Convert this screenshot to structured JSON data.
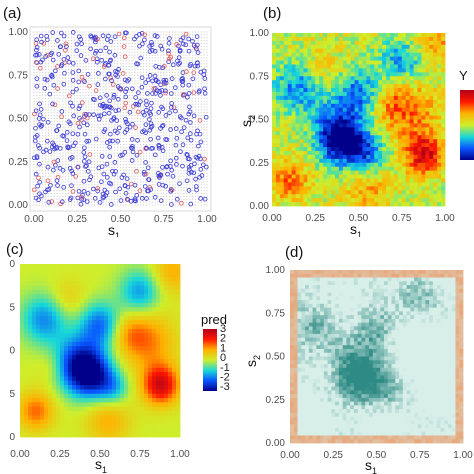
{
  "chart_data": [
    {
      "panel": "(a)",
      "type": "scatter",
      "xlabel": "s",
      "xlabel_sub": "1",
      "ylabel": "",
      "ylabel_sub": "",
      "xlim": [
        0,
        1
      ],
      "ylim": [
        0,
        1
      ],
      "xticks": [
        "0.00",
        "0.25",
        "0.50",
        "0.75",
        "1.00"
      ],
      "yticks": [
        "0.00",
        "0.25",
        "0.50",
        "0.75",
        "1.00"
      ],
      "grid": true,
      "colors": {
        "grid_points": "#cfcfcf",
        "blue_points": "#3a3ad6",
        "red_points": "#e05a5a"
      }
    },
    {
      "panel": "(b)",
      "type": "heatmap",
      "xlabel": "s",
      "xlabel_sub": "1",
      "ylabel": "s",
      "ylabel_sub": "2",
      "xlim": [
        0,
        1
      ],
      "ylim": [
        0,
        1
      ],
      "xticks": [
        "0.00",
        "0.25",
        "0.50",
        "0.75",
        "1.00"
      ],
      "yticks": [
        "0.00",
        "0.25",
        "0.50",
        "0.75",
        "1.00"
      ],
      "legend": {
        "title": "Y",
        "placement": "right"
      }
    },
    {
      "panel": "(c)",
      "type": "heatmap",
      "xlabel": "s",
      "xlabel_sub": "1",
      "ylabel": "",
      "ylabel_sub": "",
      "xlim": [
        0,
        1
      ],
      "ylim": [
        0,
        1
      ],
      "xticks": [
        "0.00",
        "0.25",
        "0.50",
        "0.75",
        "1.00"
      ],
      "yticks": [
        "0",
        "5",
        "0",
        "5",
        "0"
      ],
      "legend": {
        "title": "pred",
        "placement": "right",
        "ticks": [
          "3",
          "2",
          "1",
          "0",
          "-1",
          "-2",
          "-3"
        ],
        "range": [
          -3,
          3
        ]
      }
    },
    {
      "panel": "(d)",
      "type": "heatmap",
      "xlabel": "s",
      "xlabel_sub": "1",
      "ylabel": "s",
      "ylabel_sub": "2",
      "xlim": [
        0,
        1
      ],
      "ylim": [
        0,
        1
      ],
      "xticks": [
        "0.00",
        "0.25",
        "0.50",
        "0.75",
        "1.00"
      ],
      "yticks": [
        "0.00",
        "0.25",
        "0.50",
        "0.75",
        "1.00"
      ],
      "colors": {
        "low": "#e8a070",
        "mid": "#d8efe9",
        "high": "#2e8a84"
      }
    }
  ]
}
